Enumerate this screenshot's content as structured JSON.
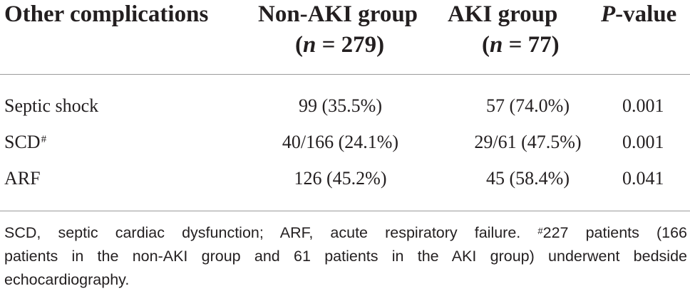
{
  "table": {
    "headers": {
      "col0": "Other complications",
      "col1_line1": "Non-AKI group",
      "col1_line2_n": "n",
      "col1_line2_rest": " = 279)",
      "col1_open": "(",
      "col2_line1": "AKI group",
      "col2_open": "(",
      "col2_line2_n": "n",
      "col2_line2_rest": " = 77)",
      "col3_p": "P",
      "col3_rest": "-value"
    },
    "rows": [
      {
        "label": "Septic shock",
        "mark": "",
        "non_aki": "99 (35.5%)",
        "aki": "57 (74.0%)",
        "p": "0.001"
      },
      {
        "label": "SCD",
        "mark": "#",
        "non_aki": "40/166 (24.1%)",
        "aki": "29/61 (47.5%)",
        "p": "0.001"
      },
      {
        "label": "ARF",
        "mark": "",
        "non_aki": "126 (45.2%)",
        "aki": "45 (58.4%)",
        "p": "0.041"
      }
    ]
  },
  "footnote": {
    "line1_text": "SCD, septic cardiac dysfunction; ARF, acute respiratory failure.",
    "line1_mark": "#",
    "line1_tail": "227 patients (166",
    "line2": "patients in the non-AKI group and 61 patients in the AKI group) underwent bedside",
    "line3": "echocardiography."
  }
}
